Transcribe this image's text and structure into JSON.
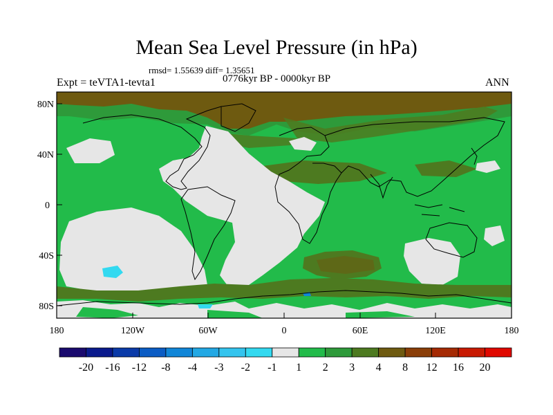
{
  "title": "Mean Sea Level Pressure (in hPa)",
  "stats_line": "rmsd= 1.55639 diff= 1.35651",
  "subtitle": "0776kyr BP - 0000kyr BP",
  "experiment_label": "Expt = teVTA1-tevta1",
  "season_label": "ANN",
  "lat_ticks": [
    "80N",
    "40N",
    "0",
    "40S",
    "80S"
  ],
  "lon_ticks": [
    "180",
    "120W",
    "60W",
    "0",
    "60E",
    "120E",
    "180"
  ],
  "colorbar": {
    "labels": [
      "-20",
      "-16",
      "-12",
      "-8",
      "-4",
      "-3",
      "-2",
      "-1",
      "1",
      "2",
      "3",
      "4",
      "8",
      "12",
      "16",
      "20"
    ],
    "colors": [
      "#1a0a6e",
      "#0a1a8c",
      "#0a3aa8",
      "#0b5cc4",
      "#1186d8",
      "#22a8e4",
      "#34c4ee",
      "#33d9f0",
      "#e6e6e6",
      "#22bb4a",
      "#2e9a3a",
      "#4d7a20",
      "#6e5a10",
      "#8a3e08",
      "#a52a04",
      "#c81a02",
      "#e00800"
    ]
  },
  "palette": {
    "land_outline": "#000000",
    "neutral": "#e6e6e6",
    "green_1_2": "#22bb4a",
    "green_2_3": "#2e9a3a",
    "olive_3_4": "#4d7a20",
    "brown_4_8": "#6e5a10",
    "cyan_low": "#33d9f0"
  }
}
